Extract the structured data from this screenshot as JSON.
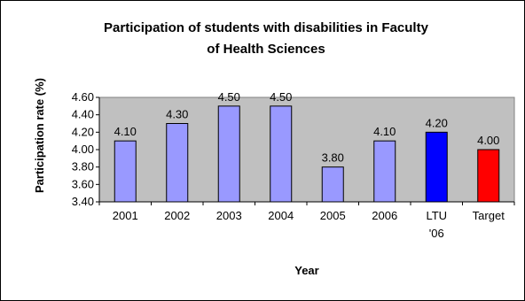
{
  "chart_data": {
    "type": "bar",
    "title_lines": [
      "Participation of students with disabilities in Faculty",
      "of Health Sciences"
    ],
    "xlabel": "Year",
    "ylabel": "Participation rate (%)",
    "categories": [
      "2001",
      "2002",
      "2003",
      "2004",
      "2005",
      "2006",
      "LTU '06",
      "Target"
    ],
    "values": [
      4.1,
      4.3,
      4.5,
      4.5,
      3.8,
      4.1,
      4.2,
      4.0
    ],
    "data_labels": [
      "4.10",
      "4.30",
      "4.50",
      "4.50",
      "3.80",
      "4.10",
      "4.20",
      "4.00"
    ],
    "yticks": [
      "3.40",
      "3.60",
      "3.80",
      "4.00",
      "4.20",
      "4.40",
      "4.60"
    ],
    "ylim": [
      3.4,
      4.6
    ],
    "grid": false,
    "legend": "none",
    "colors": [
      "#9999ff",
      "#9999ff",
      "#9999ff",
      "#9999ff",
      "#9999ff",
      "#9999ff",
      "#0000ff",
      "#ff0000"
    ],
    "plot_background": "#c0c0c0"
  }
}
